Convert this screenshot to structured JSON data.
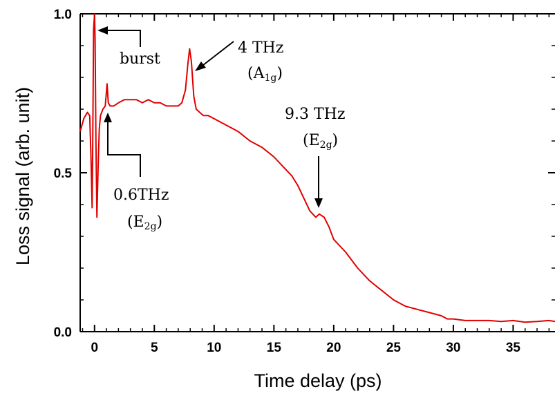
{
  "chart_data": {
    "type": "line",
    "xlabel": "Time delay (ps)",
    "ylabel": "Loss signal (arb. unit)",
    "xlim": [
      -1.2,
      38.5
    ],
    "ylim": [
      0.0,
      1.0
    ],
    "x_ticks": [
      0,
      5,
      10,
      15,
      20,
      25,
      30,
      35
    ],
    "y_ticks": [
      0.0,
      0.5,
      1.0
    ],
    "y_tick_labels": [
      "0.0",
      "0.5",
      "1.0"
    ],
    "grid": false,
    "color": "#e00000",
    "series": [
      {
        "x": [
          -1.2,
          -0.9,
          -0.6,
          -0.4,
          -0.3,
          -0.2,
          -0.15,
          -0.08,
          0.0,
          0.05,
          0.12,
          0.2,
          0.3,
          0.4,
          0.5,
          0.7,
          0.9,
          1.05,
          1.15,
          1.3,
          1.6,
          2.0,
          2.5,
          3.0,
          3.5,
          4.0,
          4.5,
          5.0,
          5.5,
          6.0,
          6.5,
          7.0,
          7.3,
          7.6,
          7.8,
          7.95,
          8.1,
          8.3,
          8.5,
          8.8,
          9.1,
          9.5,
          10.0,
          11.0,
          12.0,
          13.0,
          14.0,
          15.0,
          16.0,
          16.5,
          17.0,
          17.5,
          18.0,
          18.5,
          18.8,
          19.2,
          19.6,
          20.0,
          21.0,
          22.0,
          23.0,
          24.0,
          25.0,
          26.0,
          27.0,
          28.0,
          29.0,
          29.5,
          30.0,
          31.0,
          32.0,
          33.0,
          34.0,
          35.0,
          36.0,
          37.0,
          38.0,
          38.5
        ],
        "y": [
          0.63,
          0.67,
          0.69,
          0.68,
          0.55,
          0.39,
          0.6,
          0.95,
          1.0,
          0.92,
          0.6,
          0.36,
          0.52,
          0.64,
          0.68,
          0.7,
          0.71,
          0.78,
          0.72,
          0.71,
          0.71,
          0.72,
          0.73,
          0.73,
          0.73,
          0.72,
          0.73,
          0.72,
          0.72,
          0.71,
          0.71,
          0.71,
          0.72,
          0.76,
          0.84,
          0.89,
          0.85,
          0.74,
          0.7,
          0.69,
          0.68,
          0.68,
          0.67,
          0.65,
          0.63,
          0.6,
          0.58,
          0.55,
          0.51,
          0.49,
          0.46,
          0.42,
          0.38,
          0.36,
          0.37,
          0.36,
          0.33,
          0.29,
          0.25,
          0.2,
          0.16,
          0.13,
          0.1,
          0.08,
          0.07,
          0.06,
          0.05,
          0.04,
          0.04,
          0.035,
          0.035,
          0.035,
          0.032,
          0.035,
          0.03,
          0.032,
          0.035,
          0.032
        ]
      }
    ],
    "annotations": [
      {
        "text": "burst",
        "sub": ""
      },
      {
        "text": "4 THz",
        "sub": "(A",
        "sub_idx": "1g",
        "close": ")"
      },
      {
        "text": "9.3 THz",
        "sub": "(E",
        "sub_idx": "2g",
        "close": ")"
      },
      {
        "text": "0.6THz",
        "sub": "(E",
        "sub_idx": "2g",
        "close": ")"
      }
    ]
  }
}
